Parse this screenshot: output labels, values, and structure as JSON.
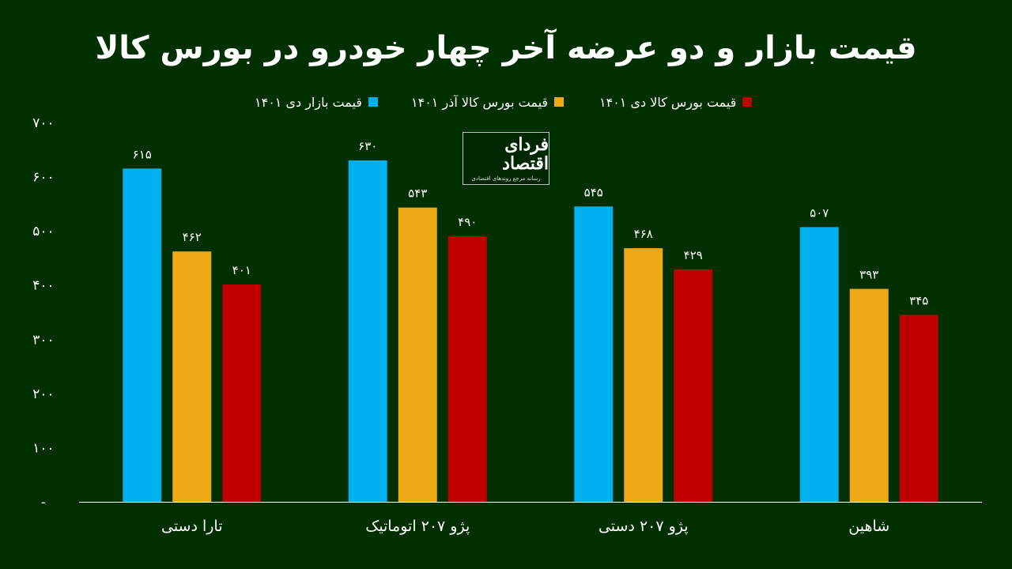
{
  "chart_data": {
    "type": "bar",
    "title": "قیمت بازار و دو عرضه آخر چهار خودرو در بورس کالا",
    "categories": [
      "تارا دستی",
      "پژو ۲۰۷ اتوماتیک",
      "پژو ۲۰۷ دستی",
      "شاهین"
    ],
    "series": [
      {
        "name": "قیمت بازار دی ۱۴۰۱",
        "color": "#00b0f0",
        "values": [
          615,
          630,
          545,
          507
        ],
        "labels": [
          "۶۱۵",
          "۶۳۰",
          "۵۴۵",
          "۵۰۷"
        ]
      },
      {
        "name": "قیمت بورس کالا آذر ۱۴۰۱",
        "color": "#eea914",
        "values": [
          462,
          543,
          468,
          393
        ],
        "labels": [
          "۴۶۲",
          "۵۴۳",
          "۴۶۸",
          "۳۹۳"
        ]
      },
      {
        "name": "قیمت بورس کالا دی ۱۴۰۱",
        "color": "#c00000",
        "values": [
          401,
          490,
          429,
          345
        ],
        "labels": [
          "۴۰۱",
          "۴۹۰",
          "۴۲۹",
          "۳۴۵"
        ]
      }
    ],
    "ylim": [
      0,
      700
    ],
    "yticks": [
      {
        "value": 700,
        "label": "۷۰۰"
      },
      {
        "value": 600,
        "label": "۶۰۰"
      },
      {
        "value": 500,
        "label": "۵۰۰"
      },
      {
        "value": 400,
        "label": "۴۰۰"
      },
      {
        "value": 300,
        "label": "۳۰۰"
      },
      {
        "value": 200,
        "label": "۲۰۰"
      },
      {
        "value": 100,
        "label": "۱۰۰"
      },
      {
        "value": 0,
        "label": "-"
      }
    ],
    "grid": false,
    "legend_position": "top"
  },
  "logo": {
    "name": "فردای اقتصاد",
    "tagline": "رسانه مرجع روندهای اقتصادی"
  },
  "colors": {
    "background": "#003000",
    "axis": "#ffffff"
  }
}
